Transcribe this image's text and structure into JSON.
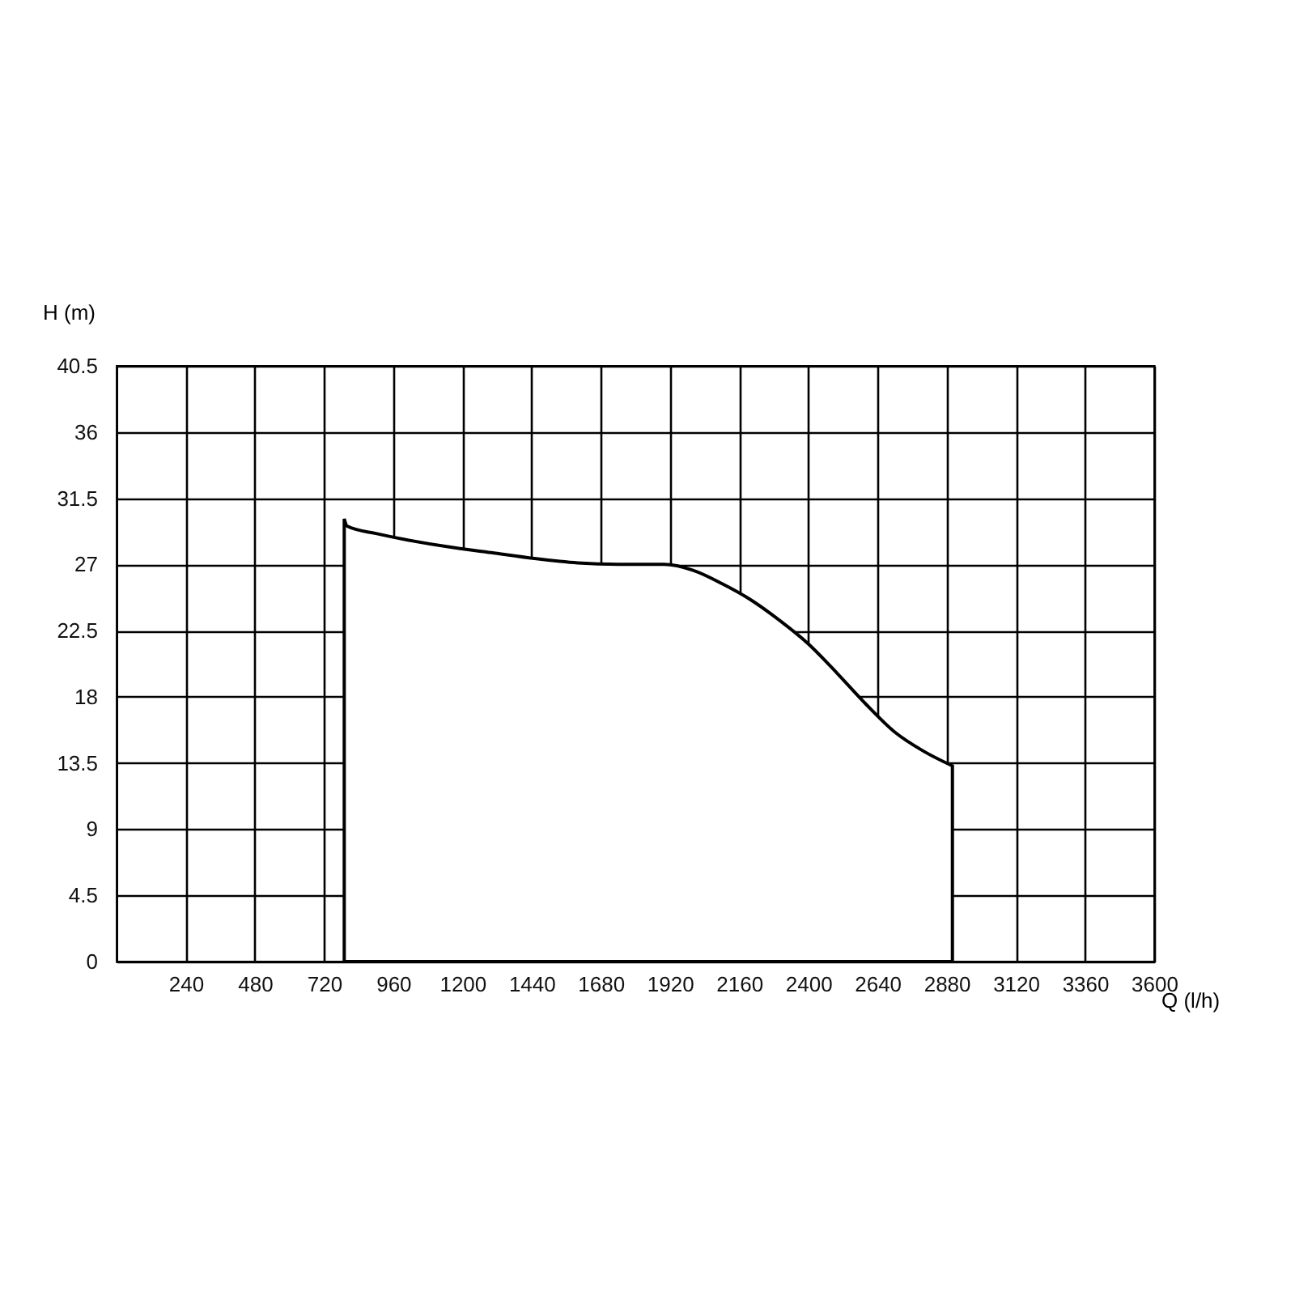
{
  "chart_data": {
    "type": "area",
    "xlabel": "Q (l/h)",
    "ylabel": "H (m)",
    "x": [
      790,
      800,
      900,
      1000,
      1150,
      1300,
      1450,
      1600,
      1750,
      1900,
      2000,
      2100,
      2200,
      2300,
      2400,
      2500,
      2600,
      2700,
      2800,
      2900
    ],
    "series": [
      {
        "color": "#000000",
        "values": [
          30.1,
          29.6,
          29.1,
          28.7,
          28.2,
          27.8,
          27.4,
          27.1,
          27.0,
          27.0,
          26.6,
          25.7,
          24.6,
          23.2,
          21.6,
          19.6,
          17.5,
          15.6,
          14.3,
          13.3
        ]
      }
    ],
    "xlim": [
      0,
      3600
    ],
    "ylim": [
      0,
      40.5
    ],
    "xticks": [
      240,
      480,
      720,
      960,
      1200,
      1440,
      1680,
      1920,
      2160,
      2400,
      2640,
      2880,
      3120,
      3360,
      3600
    ],
    "yticks": [
      0,
      4.5,
      9,
      13.5,
      18,
      22.5,
      27,
      31.5,
      36,
      40.5
    ],
    "grid": true
  }
}
